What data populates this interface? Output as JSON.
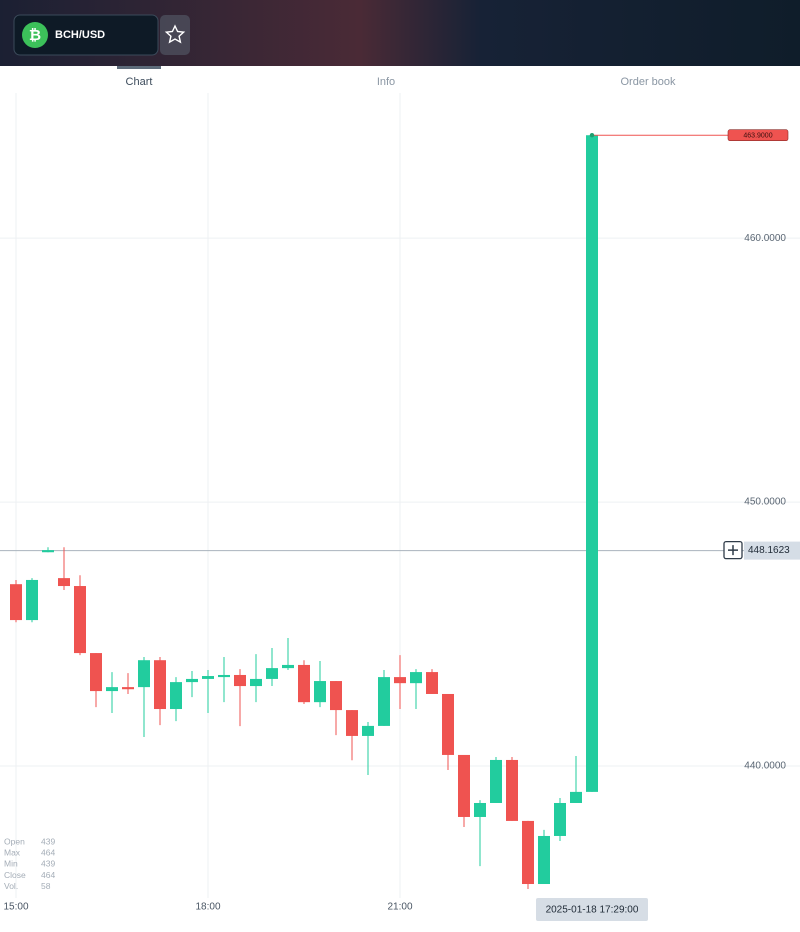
{
  "header": {
    "symbol": "BCH/USD"
  },
  "tabs": [
    "Chart",
    "Info",
    "Order book"
  ],
  "chart_data": {
    "type": "candlestick",
    "x": [
      15,
      15.25,
      15.5,
      15.75,
      16,
      16.25,
      16.5,
      16.75,
      17,
      17.25,
      17.5,
      17.75,
      18,
      18.25,
      18.5,
      18.75,
      19,
      19.25,
      19.5,
      19.75,
      20,
      20.25,
      20.5,
      20.75,
      21,
      21.25,
      21.5,
      21.75,
      22,
      22.25,
      22.5,
      22.75,
      23,
      23.25,
      23.5,
      23.75,
      24
    ],
    "open": [
      446.89,
      445.53,
      448.1,
      447.12,
      446.82,
      444.28,
      442.84,
      442.99,
      442.99,
      444.01,
      442.16,
      443.18,
      443.3,
      443.37,
      443.45,
      443.03,
      443.3,
      443.71,
      443.83,
      442.42,
      443.22,
      442.12,
      441.14,
      441.52,
      443.37,
      443.14,
      443.56,
      442.73,
      440.42,
      438.07,
      438.6,
      440.23,
      437.92,
      435.53,
      437.35,
      438.6,
      439.02
    ],
    "high": [
      447.05,
      447.12,
      448.29,
      448.29,
      447.23,
      444.28,
      443.56,
      443.52,
      444.13,
      444.13,
      443.37,
      443.6,
      443.64,
      444.13,
      443.67,
      444.24,
      444.47,
      444.85,
      444.01,
      443.98,
      443.22,
      442.12,
      441.67,
      443.64,
      444.2,
      443.67,
      443.67,
      442.73,
      440.42,
      438.71,
      440.34,
      440.34,
      437.92,
      437.58,
      438.79,
      440.38,
      463.9
    ],
    "low": [
      445.45,
      445.45,
      448.1,
      446.67,
      444.2,
      442.23,
      442.01,
      442.73,
      441.1,
      441.55,
      441.7,
      442.61,
      442.01,
      442.42,
      441.51,
      442.42,
      443.03,
      443.64,
      442.35,
      442.23,
      441.17,
      440.22,
      439.66,
      441.52,
      442.16,
      442.16,
      442.73,
      439.85,
      437.69,
      436.21,
      438.6,
      437.92,
      435.34,
      435.53,
      437.16,
      438.6,
      439.02
    ],
    "close": [
      445.53,
      447.05,
      448.18,
      446.82,
      444.28,
      442.84,
      442.99,
      442.91,
      444.01,
      442.16,
      443.18,
      443.3,
      443.41,
      443.45,
      443.03,
      443.3,
      443.71,
      443.83,
      442.42,
      443.22,
      442.12,
      441.14,
      441.52,
      443.37,
      443.14,
      443.56,
      442.73,
      440.42,
      438.07,
      438.6,
      440.23,
      437.92,
      435.53,
      437.35,
      438.6,
      439.02,
      463.9
    ],
    "up_color": "#22cc9e",
    "down_color": "#ef5350",
    "xlim": [
      14.75,
      27.25
    ],
    "xticks": [
      {
        "value": 15,
        "label": "15:00"
      },
      {
        "value": 18,
        "label": "18:00"
      },
      {
        "value": 21,
        "label": "21:00"
      }
    ],
    "ylim": [
      435,
      465.5
    ],
    "yticks": [
      {
        "value": 440,
        "label": "440.0000"
      },
      {
        "value": 450,
        "label": "450.0000"
      },
      {
        "value": 460,
        "label": "460.0000"
      }
    ],
    "grid": true,
    "last_price": {
      "value": 463.9,
      "label": "463.9000"
    },
    "crosshair_price": 448.1623,
    "crosshair_time": "2025-01-18 17:29:00",
    "ohlc_legend": [
      {
        "label": "Open",
        "value": 439
      },
      {
        "label": "Max",
        "value": 464
      },
      {
        "label": "Min",
        "value": 439
      },
      {
        "label": "Close",
        "value": 464
      },
      {
        "label": "Vol.",
        "value": 58
      }
    ]
  }
}
